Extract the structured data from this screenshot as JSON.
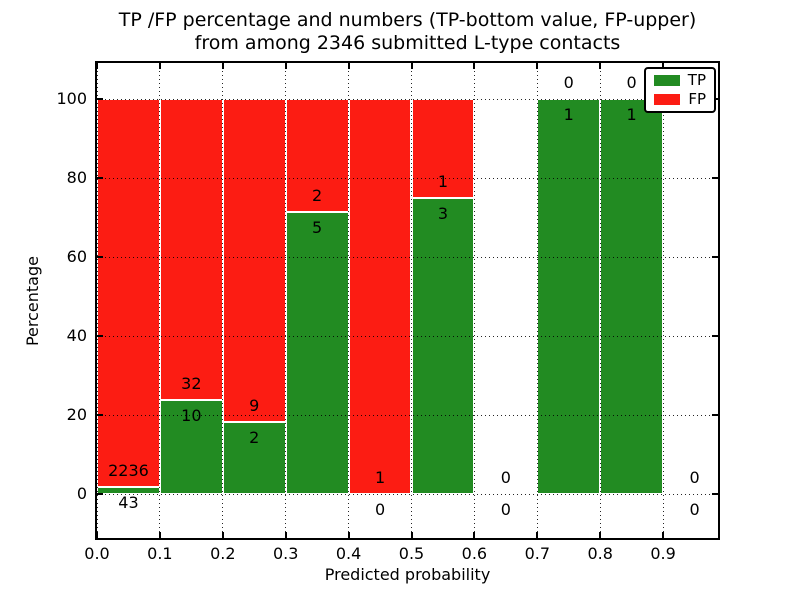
{
  "figure": {
    "title_line1": "TP /FP percentage and numbers (TP-bottom value, FP-upper)",
    "title_line2": "from among 2346 submitted L-type contacts",
    "xlabel": "Predicted probability",
    "ylabel": "Percentage"
  },
  "legend": {
    "items": [
      {
        "label": "TP",
        "color": "#228b22"
      },
      {
        "label": "FP",
        "color": "#fc1c13"
      }
    ]
  },
  "chart_data": {
    "type": "bar",
    "stacked": true,
    "normalized": "percent",
    "title": "TP /FP percentage and numbers (TP-bottom value, FP-upper) from among 2346 submitted L-type contacts",
    "xlabel": "Predicted probability",
    "ylabel": "Percentage",
    "total_contacts": 2346,
    "bin_width": 0.1,
    "bins": [
      {
        "range": "0.0-0.1",
        "tp": 43,
        "fp": 2236
      },
      {
        "range": "0.1-0.2",
        "tp": 10,
        "fp": 32
      },
      {
        "range": "0.2-0.3",
        "tp": 2,
        "fp": 9
      },
      {
        "range": "0.3-0.4",
        "tp": 5,
        "fp": 2
      },
      {
        "range": "0.4-0.5",
        "tp": 0,
        "fp": 1
      },
      {
        "range": "0.5-0.6",
        "tp": 3,
        "fp": 1
      },
      {
        "range": "0.6-0.7",
        "tp": 0,
        "fp": 0
      },
      {
        "range": "0.7-0.8",
        "tp": 1,
        "fp": 0
      },
      {
        "range": "0.8-0.9",
        "tp": 1,
        "fp": 0
      },
      {
        "range": "0.9-1.0",
        "tp": 0,
        "fp": 0
      }
    ],
    "series_colors": {
      "tp": "#228b22",
      "fp": "#fc1c13"
    },
    "xticks": [
      "0.0",
      "0.1",
      "0.2",
      "0.3",
      "0.4",
      "0.5",
      "0.6",
      "0.7",
      "0.8",
      "0.9"
    ],
    "yticks": [
      0,
      20,
      40,
      60,
      80,
      100
    ],
    "xlim": [
      0.0,
      0.99
    ],
    "ylim": [
      -11,
      109
    ],
    "grid": true,
    "legend_position": "upper right",
    "label_rule": "FP count above TP/FP boundary, TP count below boundary"
  }
}
